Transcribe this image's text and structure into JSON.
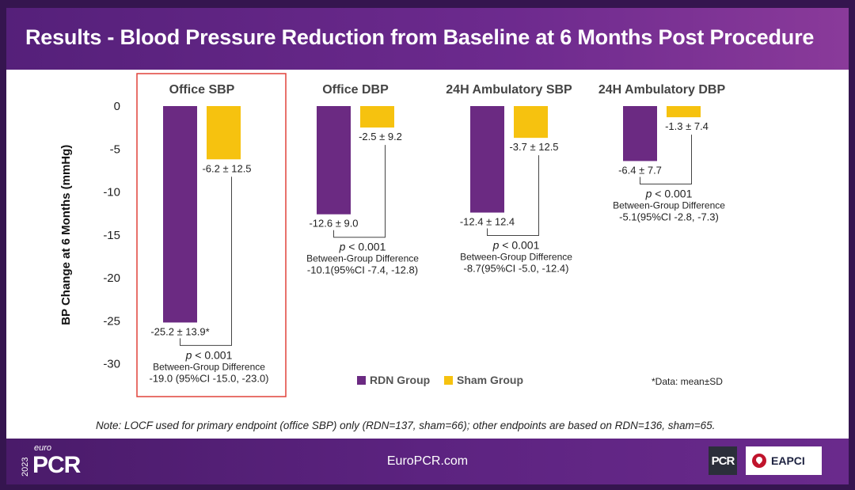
{
  "slide": {
    "title": "Results - Blood Pressure Reduction from Baseline at 6 Months Post Procedure",
    "note": "Note: LOCF used for primary endpoint (office SBP) only (RDN=137, sham=66); other endpoints are based on RDN=136, sham=65.",
    "footnote": "*Data: mean±SD",
    "footer_url": "EuroPCR.com",
    "logo_year": "2023",
    "logo_euro": "euro",
    "logo_pcr": "PCR",
    "pcr_badge": "PCR",
    "eapci_label": "EAPCI"
  },
  "chart_data": {
    "type": "bar",
    "ylabel": "BP Change at 6 Months (mmHg)",
    "ylim": [
      -30,
      0
    ],
    "yticks": [
      0,
      -5,
      -10,
      -15,
      -20,
      -25,
      -30
    ],
    "categories": [
      "Office SBP",
      "Office DBP",
      "24H Ambulatory SBP",
      "24H Ambulatory DBP"
    ],
    "series": [
      {
        "name": "RDN Group",
        "color": "#6b2a82",
        "values": [
          -25.2,
          -12.6,
          -12.4,
          -6.4
        ],
        "labels": [
          "-25.2 ± 13.9*",
          "-12.6 ± 9.0",
          "-12.4 ± 12.4",
          "-6.4 ± 7.7"
        ]
      },
      {
        "name": "Sham Group",
        "color": "#f6c20f",
        "values": [
          -6.2,
          -2.5,
          -3.7,
          -1.3
        ],
        "labels": [
          "-6.2 ± 12.5",
          "-2.5 ± 9.2",
          "-3.7 ± 12.5",
          "-1.3 ± 7.4"
        ]
      }
    ],
    "annotations": [
      {
        "p": "< 0.001",
        "line1": "Between-Group Difference",
        "line2": "-19.0 (95%CI -15.0, -23.0)"
      },
      {
        "p": "< 0.001",
        "line1": "Between-Group Difference",
        "line2": "-10.1(95%CI -7.4, -12.8)"
      },
      {
        "p": "< 0.001",
        "line1": "Between-Group Difference",
        "line2": "-8.7(95%CI -5.0, -12.4)"
      },
      {
        "p": "< 0.001",
        "line1": "Between-Group Difference",
        "line2": "-5.1(95%CI -2.8, -7.3)"
      }
    ],
    "highlight_category": "Office SBP",
    "highlight_color": "#e0423a",
    "legend": "bottom-center"
  }
}
